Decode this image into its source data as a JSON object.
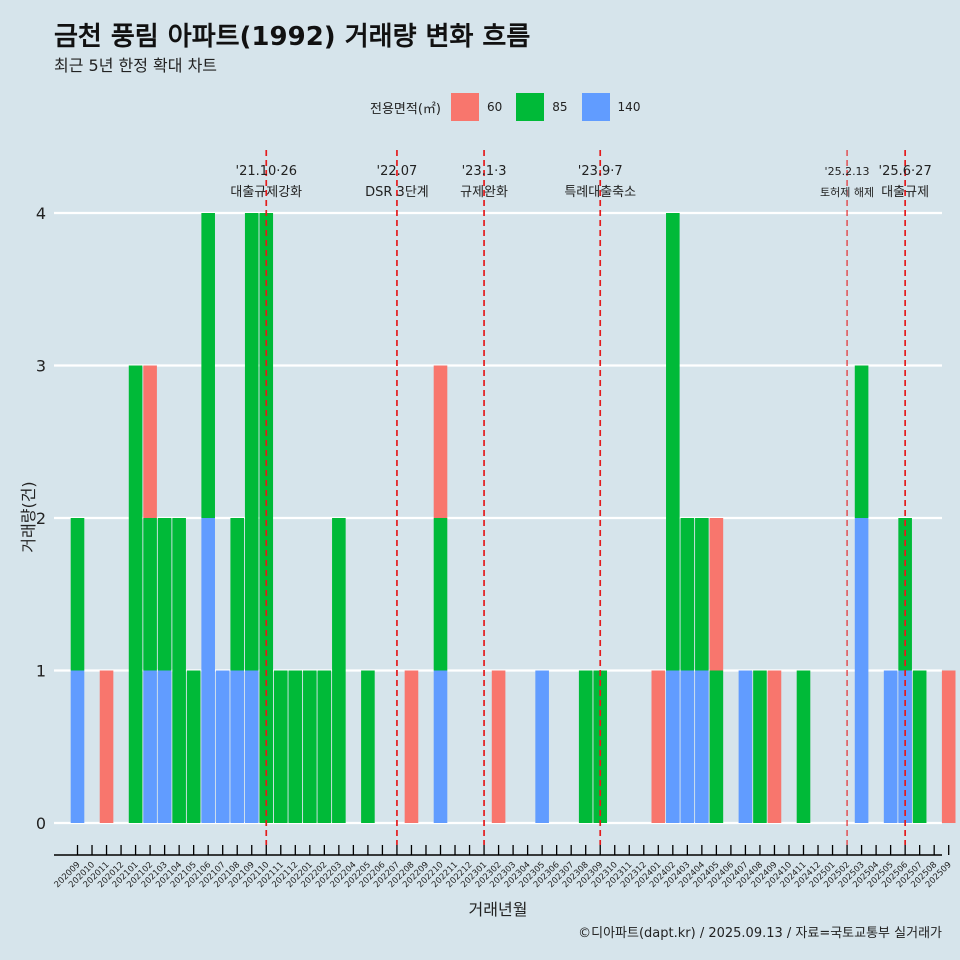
{
  "chart_data": {
    "type": "bar",
    "title": "금천 풍림 아파트(1992) 거래량 변화 흐름",
    "subtitle": "최근 5년 한정 확대 차트",
    "xlabel": "거래년월",
    "ylabel": "거래량(건)",
    "ylim": [
      0,
      4
    ],
    "y_ticks": [
      0,
      1,
      2,
      3,
      4
    ],
    "legend_title": "전용면적(㎡)",
    "legend_position": "top",
    "categories": [
      "202009",
      "202010",
      "202011",
      "202012",
      "202101",
      "202102",
      "202103",
      "202104",
      "202105",
      "202106",
      "202107",
      "202108",
      "202109",
      "202110",
      "202111",
      "202112",
      "202201",
      "202202",
      "202203",
      "202204",
      "202205",
      "202206",
      "202207",
      "202208",
      "202209",
      "202210",
      "202211",
      "202212",
      "202301",
      "202302",
      "202303",
      "202304",
      "202305",
      "202306",
      "202307",
      "202308",
      "202309",
      "202310",
      "202311",
      "202312",
      "202401",
      "202402",
      "202403",
      "202404",
      "202405",
      "202406",
      "202407",
      "202408",
      "202409",
      "202410",
      "202411",
      "202412",
      "202501",
      "202502",
      "202503",
      "202504",
      "202505",
      "202506",
      "202507",
      "202508",
      "202509"
    ],
    "series": [
      {
        "name": "60",
        "color": "#f8766d",
        "values": [
          0,
          0,
          1,
          0,
          0,
          1,
          0,
          0,
          0,
          0,
          0,
          0,
          0,
          0,
          0,
          0,
          0,
          0,
          0,
          0,
          0,
          0,
          0,
          1,
          0,
          1,
          0,
          0,
          0,
          1,
          0,
          0,
          0,
          0,
          0,
          0,
          0,
          0,
          0,
          0,
          1,
          0,
          0,
          0,
          1,
          0,
          0,
          0,
          1,
          0,
          0,
          0,
          0,
          0,
          0,
          0,
          0,
          0,
          0,
          0,
          1
        ]
      },
      {
        "name": "85",
        "color": "#00ba38",
        "values": [
          1,
          0,
          0,
          0,
          3,
          1,
          1,
          2,
          1,
          2,
          0,
          1,
          3,
          4,
          1,
          1,
          1,
          1,
          2,
          0,
          1,
          0,
          0,
          0,
          0,
          1,
          0,
          0,
          0,
          0,
          0,
          0,
          0,
          0,
          0,
          1,
          1,
          0,
          0,
          0,
          0,
          3,
          1,
          1,
          1,
          0,
          0,
          1,
          0,
          0,
          1,
          0,
          0,
          0,
          1,
          0,
          0,
          1,
          1,
          0,
          0
        ]
      },
      {
        "name": "140",
        "color": "#619cff",
        "values": [
          1,
          0,
          0,
          0,
          0,
          1,
          1,
          0,
          0,
          2,
          1,
          1,
          1,
          0,
          0,
          0,
          0,
          0,
          0,
          0,
          0,
          0,
          0,
          0,
          0,
          1,
          0,
          0,
          0,
          0,
          0,
          0,
          1,
          0,
          0,
          0,
          0,
          0,
          0,
          0,
          0,
          1,
          1,
          1,
          0,
          0,
          1,
          0,
          0,
          0,
          0,
          0,
          0,
          0,
          2,
          0,
          1,
          1,
          0,
          0,
          0
        ]
      }
    ],
    "annotations": [
      {
        "category": "202110",
        "date": "'21.10·26",
        "label": "대출규제강화",
        "style": "bold"
      },
      {
        "category": "202207",
        "date": "'22.07",
        "label": "DSR 3단계",
        "style": "bold"
      },
      {
        "category": "202301",
        "date": "'23.1·3",
        "label": "규제완화",
        "style": "bold"
      },
      {
        "category": "202309",
        "date": "'23.9·7",
        "label": "특례대출축소",
        "style": "bold"
      },
      {
        "category": "202502",
        "date": "'25.2.13",
        "label": "토허제 해제",
        "style": "thin"
      },
      {
        "category": "202506",
        "date": "'25.6·27",
        "label": "대출규제",
        "style": "bold"
      }
    ],
    "annotation_line_color": "#e41a1c",
    "grid": true
  },
  "caption": "©디아파트(dapt.kr) / 2025.09.13 / 자료=국토교통부 실거래가"
}
